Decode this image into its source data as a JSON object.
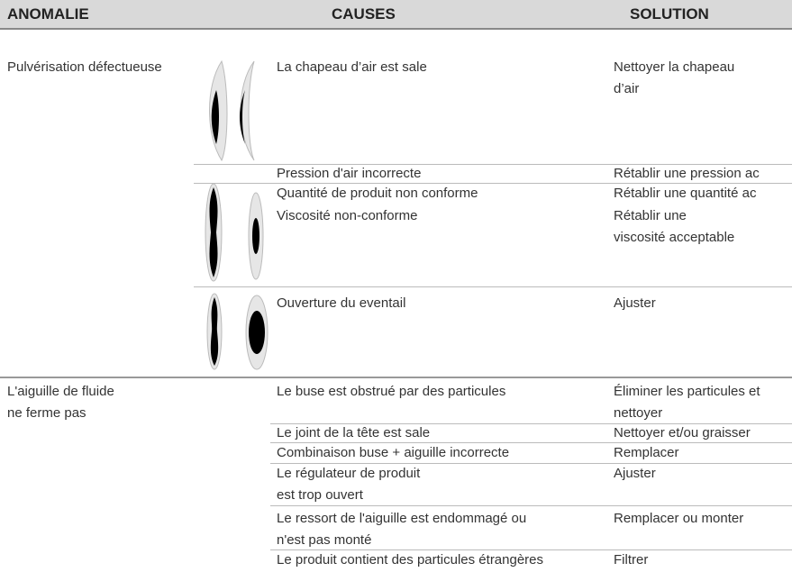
{
  "header": {
    "columns": [
      "ANOMALIE",
      "CAUSES",
      "SOLUTION"
    ]
  },
  "rows": [
    {
      "anomaly": [
        "Pulvérisation défectueuse"
      ],
      "cause": [
        "La chapeau d’air est sale"
      ],
      "solution": [
        "Nettoyer la chapeau",
        "d’air"
      ]
    },
    {
      "cause": [
        "Pression d'air incorrecte"
      ],
      "solution": [
        "Rétablir une pression ac"
      ]
    },
    {
      "cause": [
        "Quantité de produit non conforme"
      ],
      "solution": [
        "Rétablir une quantité ac"
      ]
    },
    {
      "cause": [
        "Viscosité non-conforme"
      ],
      "solution": [
        "Rétablir une",
        "viscosité acceptable"
      ]
    },
    {
      "cause": [
        "Ouverture du eventail"
      ],
      "solution": [
        "Ajuster"
      ]
    },
    {
      "anomaly": [
        "L'aiguille de fluide",
        "ne ferme pas"
      ],
      "cause": [
        "Le buse est obstrué par des particules"
      ],
      "solution": [
        "Éliminer les particules et",
        "nettoyer"
      ]
    },
    {
      "cause": [
        "Le joint de la tête est sale"
      ],
      "solution": [
        "Nettoyer et/ou graisser"
      ]
    },
    {
      "cause": [
        "Combinaison buse + aiguille incorrecte"
      ],
      "solution": [
        "Remplacer"
      ]
    },
    {
      "cause": [
        "Le régulateur de produit",
        "est trop ouvert"
      ],
      "solution": [
        "Ajuster"
      ]
    },
    {
      "cause": [
        "Le ressort de l'aiguille est endommagé ou",
        "n'est pas monté"
      ],
      "solution": [
        "Remplacer ou monter"
      ]
    },
    {
      "cause": [
        "Le produit contient des particules étrangères"
      ],
      "solution": [
        "Filtrer"
      ]
    }
  ]
}
